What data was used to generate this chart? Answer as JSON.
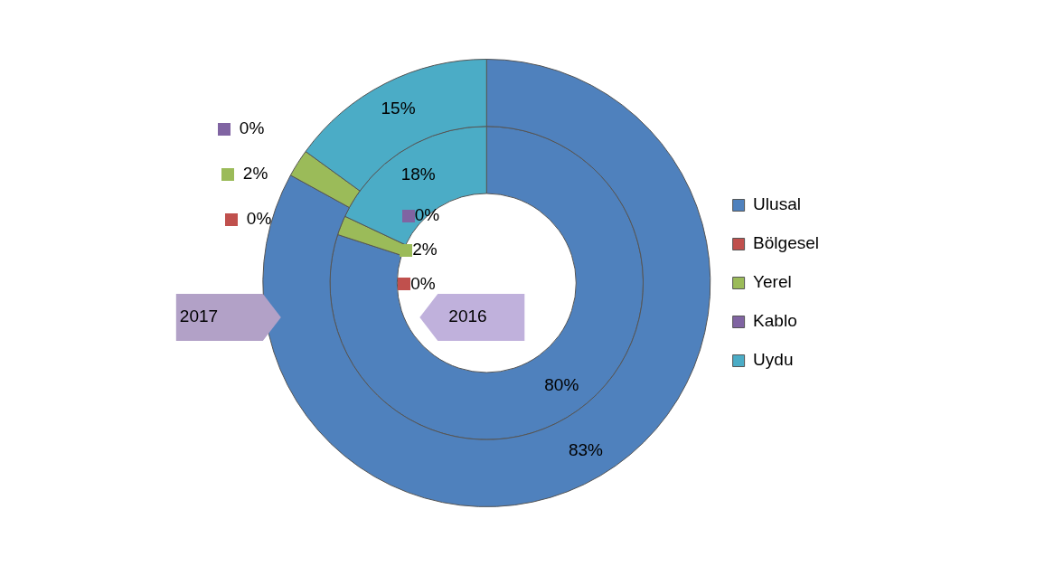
{
  "chart_data": {
    "type": "donut",
    "categories": [
      "Ulusal",
      "Bölgesel",
      "Yerel",
      "Kablo",
      "Uydu"
    ],
    "colors": [
      "#4f81bd",
      "#c0504d",
      "#9bbb59",
      "#8064a2",
      "#4bacc6"
    ],
    "series": [
      {
        "name": "2016",
        "values": [
          80,
          0,
          2,
          0,
          18
        ],
        "value_labels": [
          "80%",
          "0%",
          "2%",
          "0%",
          "18%"
        ]
      },
      {
        "name": "2017",
        "values": [
          83,
          0,
          2,
          0,
          15
        ],
        "value_labels": [
          "83%",
          "0%",
          "2%",
          "0%",
          "15%"
        ]
      }
    ],
    "legend": "right"
  }
}
